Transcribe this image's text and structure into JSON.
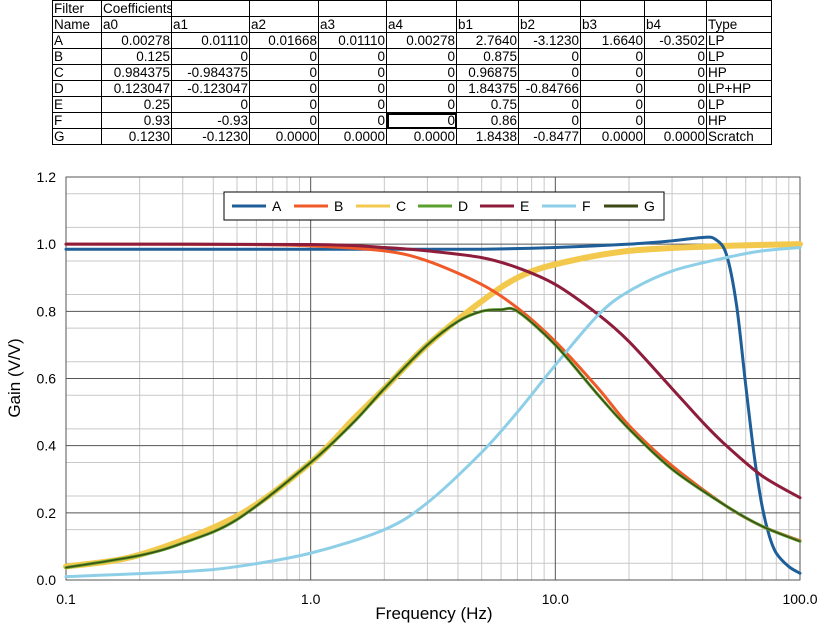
{
  "sheet": {
    "header1": [
      "Filter",
      "Coefficients",
      "",
      "",
      "",
      "",
      "",
      "",
      "",
      "",
      ""
    ],
    "header2": [
      "Name",
      "a0",
      "a1",
      "a2",
      "a3",
      "a4",
      "b1",
      "b2",
      "b3",
      "b4",
      "Type"
    ],
    "rows": [
      [
        "A",
        "0.00278",
        "0.01110",
        "0.01668",
        "0.01110",
        "0.00278",
        "2.7640",
        "-3.1230",
        "1.6640",
        "-0.3502",
        "LP"
      ],
      [
        "B",
        "0.125",
        "0",
        "0",
        "0",
        "0",
        "0.875",
        "0",
        "0",
        "0",
        "LP"
      ],
      [
        "C",
        "0.984375",
        "-0.984375",
        "0",
        "0",
        "0",
        "0.96875",
        "0",
        "0",
        "0",
        "HP"
      ],
      [
        "D",
        "0.123047",
        "-0.123047",
        "0",
        "0",
        "0",
        "1.84375",
        "-0.84766",
        "0",
        "0",
        "LP+HP"
      ],
      [
        "E",
        "0.25",
        "0",
        "0",
        "0",
        "0",
        "0.75",
        "0",
        "0",
        "0",
        "LP"
      ],
      [
        "F",
        "0.93",
        "-0.93",
        "0",
        "0",
        "0",
        "0.86",
        "0",
        "0",
        "0",
        "HP"
      ],
      [
        "G",
        "0.1230",
        "-0.1230",
        "0.0000",
        "0.0000",
        "0.0000",
        "1.8438",
        "-0.8477",
        "0.0000",
        "0.0000",
        "Scratch"
      ]
    ]
  },
  "chart_data": {
    "type": "line",
    "xlabel": "Frequency (Hz)",
    "ylabel": "Gain (V/V)",
    "xscale": "log",
    "xlim": [
      0.1,
      100
    ],
    "ylim": [
      0,
      1.2
    ],
    "xticks": [
      "0.1",
      "1.0",
      "10.0",
      "100.0"
    ],
    "yticks": [
      "0.0",
      "0.2",
      "0.4",
      "0.6",
      "0.8",
      "1.0",
      "1.2"
    ],
    "grid": true,
    "legend_position": "top",
    "series": [
      {
        "name": "A",
        "color": "#1f5f99",
        "x": [
          0.1,
          0.5,
          1,
          3,
          5,
          10,
          20,
          30,
          40,
          45,
          50,
          55,
          60,
          65,
          70,
          75,
          80,
          90,
          100
        ],
        "y": [
          0.985,
          0.985,
          0.985,
          0.985,
          0.985,
          0.99,
          1.0,
          1.01,
          1.02,
          1.015,
          0.97,
          0.82,
          0.58,
          0.37,
          0.22,
          0.13,
          0.08,
          0.04,
          0.02
        ]
      },
      {
        "name": "B",
        "color": "#f05a28",
        "x": [
          0.1,
          0.5,
          1,
          2,
          3,
          5,
          7,
          10,
          15,
          20,
          30,
          50,
          70,
          100
        ],
        "y": [
          1.0,
          0.999,
          0.995,
          0.98,
          0.95,
          0.88,
          0.81,
          0.71,
          0.57,
          0.46,
          0.34,
          0.22,
          0.16,
          0.117
        ]
      },
      {
        "name": "C",
        "color": "#f2c94c",
        "x": [
          0.1,
          0.2,
          0.5,
          1,
          1.5,
          2,
          3,
          5,
          7,
          10,
          20,
          50,
          100
        ],
        "y": [
          0.04,
          0.075,
          0.19,
          0.35,
          0.48,
          0.57,
          0.7,
          0.83,
          0.9,
          0.94,
          0.98,
          0.995,
          1.0
        ]
      },
      {
        "name": "D",
        "color": "#5aa02c",
        "x": [
          0.1,
          0.2,
          0.3,
          0.5,
          1,
          1.5,
          2,
          3,
          4,
          5,
          6,
          7,
          10,
          15,
          20,
          30,
          50,
          70,
          100
        ],
        "y": [
          0.037,
          0.073,
          0.11,
          0.18,
          0.35,
          0.47,
          0.57,
          0.7,
          0.77,
          0.8,
          0.805,
          0.8,
          0.7,
          0.55,
          0.45,
          0.33,
          0.22,
          0.16,
          0.115
        ]
      },
      {
        "name": "E",
        "color": "#8e1d3c",
        "x": [
          0.1,
          1,
          2,
          3,
          5,
          7,
          10,
          15,
          20,
          30,
          40,
          50,
          70,
          100
        ],
        "y": [
          1.0,
          0.999,
          0.99,
          0.98,
          0.96,
          0.93,
          0.88,
          0.79,
          0.71,
          0.57,
          0.47,
          0.4,
          0.31,
          0.245
        ]
      },
      {
        "name": "F",
        "color": "#8ecfe8",
        "x": [
          0.1,
          0.3,
          0.5,
          1,
          2,
          3,
          5,
          7,
          10,
          15,
          20,
          30,
          50,
          70,
          100
        ],
        "y": [
          0.01,
          0.025,
          0.04,
          0.08,
          0.15,
          0.23,
          0.38,
          0.5,
          0.64,
          0.79,
          0.86,
          0.92,
          0.96,
          0.98,
          0.99
        ]
      },
      {
        "name": "G",
        "color": "#3c4a16",
        "x": [
          0.1,
          0.2,
          0.3,
          0.5,
          1,
          1.5,
          2,
          3,
          4,
          5,
          6,
          7,
          10,
          15,
          20,
          30,
          50,
          70,
          100
        ],
        "y": [
          0.037,
          0.073,
          0.11,
          0.18,
          0.35,
          0.47,
          0.57,
          0.7,
          0.77,
          0.8,
          0.805,
          0.8,
          0.7,
          0.55,
          0.45,
          0.33,
          0.22,
          0.16,
          0.115
        ]
      }
    ]
  }
}
